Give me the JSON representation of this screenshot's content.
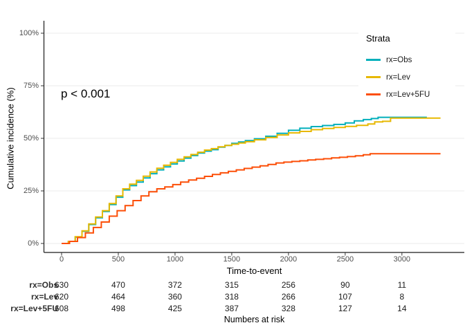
{
  "chart_data": {
    "type": "line",
    "subtype": "step-cumulative-incidence",
    "title": "",
    "xlabel": "Time-to-event",
    "ylabel": "Cumulative incidence (%)",
    "p_value_label": "p < 0.001",
    "xlim": [
      0,
      3550
    ],
    "ylim": [
      0,
      100
    ],
    "grid": "horizontal-only",
    "x_ticks": [
      0,
      500,
      1000,
      1500,
      2000,
      2500,
      3000
    ],
    "y_ticks": [
      {
        "value": 0,
        "label": "0%"
      },
      {
        "value": 25,
        "label": "25%"
      },
      {
        "value": 50,
        "label": "50%"
      },
      {
        "value": 75,
        "label": "75%"
      },
      {
        "value": 100,
        "label": "100%"
      }
    ],
    "legend": {
      "title": "Strata",
      "position": "top-right-inside"
    },
    "series": [
      {
        "name": "rx=Obs",
        "color": "#00AFBB",
        "points": [
          [
            0,
            0
          ],
          [
            60,
            1
          ],
          [
            120,
            3
          ],
          [
            180,
            5.8
          ],
          [
            240,
            9
          ],
          [
            300,
            12.2
          ],
          [
            360,
            15.2
          ],
          [
            420,
            18.5
          ],
          [
            480,
            22
          ],
          [
            540,
            25.5
          ],
          [
            600,
            27.5
          ],
          [
            660,
            29.2
          ],
          [
            720,
            31.2
          ],
          [
            780,
            33.2
          ],
          [
            840,
            35
          ],
          [
            900,
            36.4
          ],
          [
            960,
            37.8
          ],
          [
            1020,
            39.2
          ],
          [
            1080,
            40.6
          ],
          [
            1140,
            41.8
          ],
          [
            1200,
            43
          ],
          [
            1260,
            43.9
          ],
          [
            1320,
            44.6
          ],
          [
            1380,
            45.8
          ],
          [
            1440,
            46.6
          ],
          [
            1500,
            47.6
          ],
          [
            1560,
            48.3
          ],
          [
            1620,
            48.9
          ],
          [
            1700,
            49.8
          ],
          [
            1800,
            51
          ],
          [
            1900,
            52.4
          ],
          [
            2000,
            53.8
          ],
          [
            2100,
            54.8
          ],
          [
            2200,
            55.6
          ],
          [
            2300,
            56.1
          ],
          [
            2400,
            56.6
          ],
          [
            2500,
            57.3
          ],
          [
            2580,
            58.3
          ],
          [
            2660,
            58.9
          ],
          [
            2730,
            59.4
          ],
          [
            2790,
            60
          ],
          [
            3220,
            60
          ]
        ]
      },
      {
        "name": "rx=Lev",
        "color": "#E7B800",
        "points": [
          [
            0,
            0
          ],
          [
            60,
            1
          ],
          [
            120,
            3.2
          ],
          [
            180,
            6
          ],
          [
            240,
            9.3
          ],
          [
            300,
            12.6
          ],
          [
            360,
            15.6
          ],
          [
            420,
            19
          ],
          [
            480,
            22.6
          ],
          [
            540,
            26
          ],
          [
            600,
            28.2
          ],
          [
            660,
            30
          ],
          [
            720,
            32
          ],
          [
            780,
            34
          ],
          [
            840,
            35.8
          ],
          [
            900,
            37.2
          ],
          [
            960,
            38.6
          ],
          [
            1020,
            40
          ],
          [
            1080,
            41.2
          ],
          [
            1140,
            42.3
          ],
          [
            1200,
            43.4
          ],
          [
            1260,
            44.4
          ],
          [
            1320,
            45.1
          ],
          [
            1380,
            46
          ],
          [
            1440,
            46.6
          ],
          [
            1500,
            47.2
          ],
          [
            1560,
            47.8
          ],
          [
            1620,
            48.4
          ],
          [
            1700,
            49.3
          ],
          [
            1800,
            50.4
          ],
          [
            1900,
            51.6
          ],
          [
            2000,
            52.6
          ],
          [
            2100,
            53.3
          ],
          [
            2200,
            54.1
          ],
          [
            2300,
            54.7
          ],
          [
            2400,
            55.2
          ],
          [
            2500,
            55.7
          ],
          [
            2600,
            56.2
          ],
          [
            2700,
            56.8
          ],
          [
            2760,
            57.8
          ],
          [
            2830,
            58.1
          ],
          [
            2900,
            59.6
          ],
          [
            3340,
            59.6
          ]
        ]
      },
      {
        "name": "rx=Lev+5FU",
        "color": "#FC4E07",
        "points": [
          [
            0,
            0
          ],
          [
            70,
            1
          ],
          [
            140,
            2.8
          ],
          [
            210,
            5
          ],
          [
            280,
            7.6
          ],
          [
            350,
            10.2
          ],
          [
            420,
            13
          ],
          [
            490,
            15.6
          ],
          [
            560,
            18
          ],
          [
            630,
            20.4
          ],
          [
            700,
            22.6
          ],
          [
            770,
            24.6
          ],
          [
            840,
            26
          ],
          [
            910,
            26.9
          ],
          [
            980,
            28
          ],
          [
            1050,
            29.2
          ],
          [
            1120,
            30.2
          ],
          [
            1190,
            31
          ],
          [
            1260,
            31.9
          ],
          [
            1330,
            32.8
          ],
          [
            1400,
            33.6
          ],
          [
            1470,
            34.3
          ],
          [
            1540,
            35
          ],
          [
            1610,
            35.7
          ],
          [
            1680,
            36.3
          ],
          [
            1750,
            36.9
          ],
          [
            1820,
            37.6
          ],
          [
            1890,
            38.3
          ],
          [
            1960,
            38.7
          ],
          [
            2030,
            39
          ],
          [
            2100,
            39.3
          ],
          [
            2170,
            39.7
          ],
          [
            2240,
            40
          ],
          [
            2310,
            40.3
          ],
          [
            2380,
            40.7
          ],
          [
            2450,
            41
          ],
          [
            2520,
            41.3
          ],
          [
            2590,
            41.7
          ],
          [
            2660,
            42.2
          ],
          [
            2720,
            42.7
          ],
          [
            3340,
            42.7
          ]
        ]
      }
    ]
  },
  "risk_table": {
    "title": "Numbers at risk",
    "time_points": [
      0,
      500,
      1000,
      1500,
      2000,
      2500,
      3000
    ],
    "rows": [
      {
        "label": "rx=Obs",
        "counts": [
          630,
          470,
          372,
          315,
          256,
          90,
          11
        ]
      },
      {
        "label": "rx=Lev",
        "counts": [
          620,
          464,
          360,
          318,
          266,
          107,
          8
        ]
      },
      {
        "label": "rx=Lev+5FU",
        "counts": [
          608,
          498,
          425,
          387,
          328,
          127,
          14
        ]
      }
    ]
  },
  "colors": {
    "background": "#ffffff",
    "grid": "#ebebeb",
    "axis": "#1a1a1a",
    "tick": "#333333",
    "tick_label": "#4d4d4d"
  }
}
